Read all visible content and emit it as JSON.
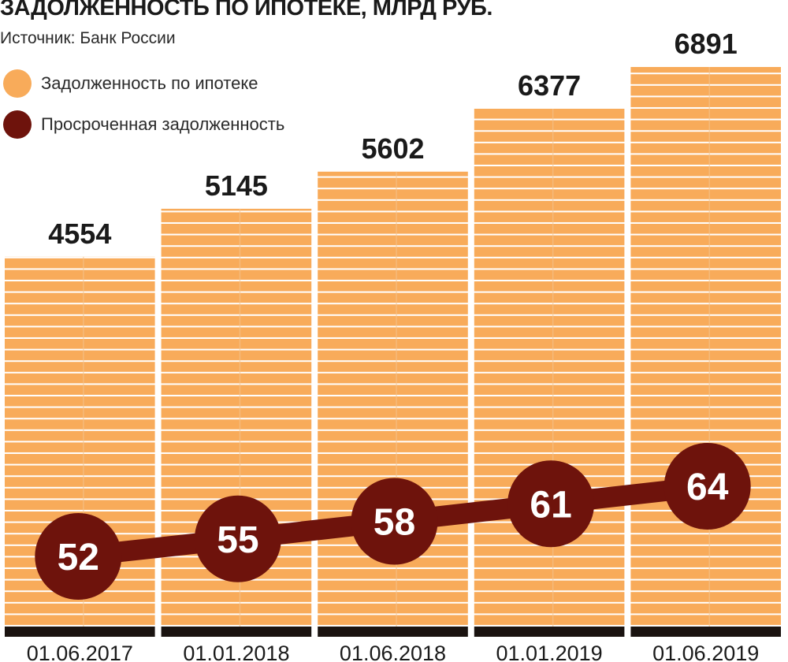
{
  "header": {
    "title": "ЗАДОЛЖЕННОСТЬ ПО ИПОТЕКЕ, МЛРД РУБ.",
    "source": "Источник: Банк России"
  },
  "legend": {
    "items": [
      {
        "label": "Задолженность по ипотеке",
        "color": "#f8ab5a"
      },
      {
        "label": "Просроченная задолженность",
        "color": "#6e130c"
      }
    ]
  },
  "chart_data": {
    "type": "bar",
    "title": "ЗАДОЛЖЕННОСТЬ ПО ИПОТЕКЕ, МЛРД РУБ.",
    "categories": [
      "01.06.2017",
      "01.01.2018",
      "01.06.2018",
      "01.01.2019",
      "01.06.2019"
    ],
    "series": [
      {
        "name": "Задолженность по ипотеке",
        "type": "bar",
        "color": "#f8ab5a",
        "values": [
          4554,
          5145,
          5602,
          6377,
          6891
        ],
        "labels": [
          "4554",
          "5145",
          "5602",
          "6377",
          "6891"
        ]
      },
      {
        "name": "Просроченная задолженность",
        "type": "line",
        "color": "#6e130c",
        "values": [
          52,
          55,
          58,
          61,
          64
        ],
        "labels": [
          "52",
          "55",
          "58",
          "61",
          "64"
        ]
      }
    ],
    "xlabel": "",
    "ylabel": "",
    "grid": false,
    "legend_position": "top-left"
  }
}
